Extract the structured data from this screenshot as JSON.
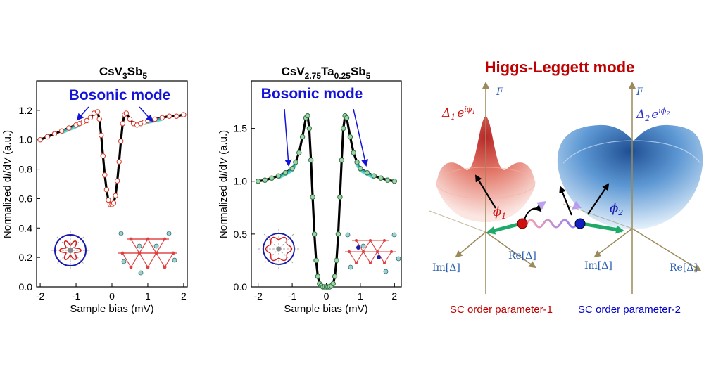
{
  "chart_data": [
    {
      "type": "line",
      "title_main": "CsV",
      "title_sub1": "3",
      "title_mid": "Sb",
      "title_sub2": "5",
      "annotation": "Bosonic mode",
      "xlabel_pre": "Sample bias (mV)",
      "ylabel_pre": "Normalized d",
      "ylabel_i": "I",
      "ylabel_mid": "/d",
      "ylabel_v": "V",
      "ylabel_post": " (a.u.)",
      "xlim": [
        -2.1,
        2.1
      ],
      "ylim": [
        0.0,
        1.4
      ],
      "xticks": [
        -2,
        -1,
        0,
        1,
        2
      ],
      "yticks": [
        0.0,
        0.2,
        0.4,
        0.6,
        0.8,
        1.0,
        1.2
      ],
      "ytick_labels": [
        "0.0",
        "0.2",
        "0.4",
        "0.6",
        "0.8",
        "1.0",
        "1.2"
      ],
      "colors": {
        "data_line": "#000000",
        "fit_markers": "#d83a2a",
        "highlight": "#2ec8c8"
      },
      "series": [
        {
          "x": [
            -2.0,
            -1.8,
            -1.6,
            -1.4,
            -1.2,
            -1.0,
            -0.9,
            -0.8,
            -0.7,
            -0.6,
            -0.5,
            -0.4,
            -0.35,
            -0.3,
            -0.25,
            -0.2,
            -0.15,
            -0.1,
            -0.05,
            0.0,
            0.05,
            0.1,
            0.15,
            0.2,
            0.25,
            0.3,
            0.35,
            0.4,
            0.5,
            0.6,
            0.7,
            0.8,
            0.9,
            1.0,
            1.2,
            1.4,
            1.6,
            1.8,
            2.0
          ],
          "values": [
            1.0,
            1.02,
            1.04,
            1.06,
            1.08,
            1.1,
            1.11,
            1.12,
            1.13,
            1.15,
            1.18,
            1.19,
            1.14,
            1.03,
            0.89,
            0.76,
            0.66,
            0.59,
            0.56,
            0.56,
            0.57,
            0.62,
            0.72,
            0.85,
            0.99,
            1.11,
            1.17,
            1.18,
            1.14,
            1.11,
            1.1,
            1.11,
            1.12,
            1.13,
            1.14,
            1.15,
            1.16,
            1.16,
            1.17
          ]
        }
      ]
    },
    {
      "type": "line",
      "title_main": "CsV",
      "title_sub1": "2.75",
      "title_mid": "Ta",
      "title_sub2": "0.25",
      "title_end": "Sb",
      "title_sub3": "5",
      "annotation": "Bosonic mode",
      "xlabel_pre": "Sample bias (mV)",
      "ylabel_pre": "Normalized d",
      "ylabel_i": "I",
      "ylabel_mid": "/d",
      "ylabel_v": "V",
      "ylabel_post": " (a.u.)",
      "xlim": [
        -2.2,
        2.2
      ],
      "ylim": [
        0.0,
        1.95
      ],
      "xticks": [
        -2,
        -1,
        0,
        1,
        2
      ],
      "yticks": [
        0.0,
        0.5,
        1.0,
        1.5
      ],
      "ytick_labels": [
        "0.0",
        "0.5",
        "1.0",
        "1.5"
      ],
      "colors": {
        "data_line": "#000000",
        "fit_markers": "#9fd3a8",
        "highlight": "#2ec8c8"
      },
      "series": [
        {
          "x": [
            -2.0,
            -1.8,
            -1.6,
            -1.4,
            -1.2,
            -1.0,
            -0.9,
            -0.8,
            -0.7,
            -0.6,
            -0.55,
            -0.5,
            -0.45,
            -0.4,
            -0.35,
            -0.3,
            -0.25,
            -0.2,
            -0.15,
            -0.1,
            -0.05,
            0.0,
            0.05,
            0.1,
            0.15,
            0.2,
            0.25,
            0.3,
            0.35,
            0.4,
            0.45,
            0.5,
            0.55,
            0.6,
            0.7,
            0.8,
            0.9,
            1.0,
            1.2,
            1.4,
            1.6,
            1.8,
            2.0
          ],
          "values": [
            1.0,
            1.01,
            1.03,
            1.05,
            1.08,
            1.12,
            1.18,
            1.27,
            1.42,
            1.6,
            1.62,
            1.5,
            1.2,
            0.85,
            0.5,
            0.25,
            0.1,
            0.03,
            0.01,
            0.0,
            0.0,
            0.0,
            0.0,
            0.0,
            0.01,
            0.03,
            0.1,
            0.25,
            0.5,
            0.85,
            1.2,
            1.5,
            1.62,
            1.6,
            1.42,
            1.27,
            1.18,
            1.12,
            1.08,
            1.05,
            1.03,
            1.01,
            1.0
          ]
        }
      ]
    }
  ],
  "diagram": {
    "title": "Higgs-Leggett mode",
    "axis_f": "F",
    "delta1_base": "Δ",
    "delta1_sub": "1",
    "delta1_e": "e",
    "delta1_exp": "iϕ",
    "delta1_exp_sub": "1",
    "delta2_base": "Δ",
    "delta2_sub": "2",
    "delta2_e": "e",
    "delta2_exp": "iϕ",
    "delta2_exp_sub": "2",
    "phi1_base": "ϕ",
    "phi1_sub": "1",
    "phi2_base": "ϕ",
    "phi2_sub": "2",
    "im_label": "Im[Δ]",
    "re_label": "Re[Δ]",
    "caption1": "SC order parameter-1",
    "caption2": "SC order parameter-2",
    "colors": {
      "title": "#c00000",
      "caption1": "#c00000",
      "caption2": "#0000cc",
      "axis": "#9b8a5a",
      "label_blue": "#2a5fb0"
    }
  }
}
